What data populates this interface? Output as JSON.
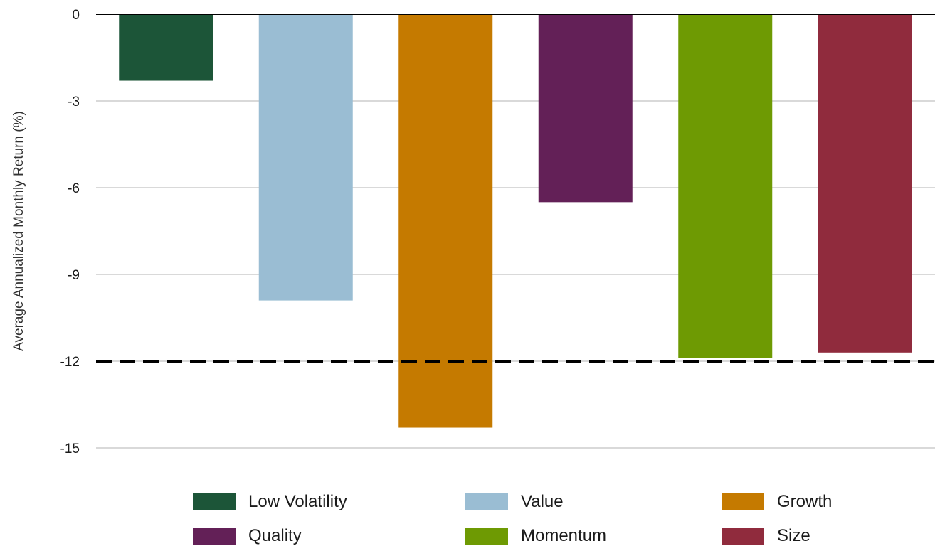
{
  "chart_data": {
    "type": "bar",
    "title": "",
    "xlabel": "",
    "ylabel": "Average Annualized Monthly Return (%)",
    "ylim": [
      -15,
      0
    ],
    "yticks": [
      0,
      -3,
      -6,
      -9,
      -12,
      -15
    ],
    "ytick_labels": [
      "0",
      "-3",
      "-6",
      "-9",
      "-12",
      "-15"
    ],
    "grid": true,
    "legend_position": "bottom",
    "reference_line": {
      "value": -12,
      "style": "dashed",
      "color": "#000000"
    },
    "categories": [
      "Low Volatility",
      "Value",
      "Growth",
      "Quality",
      "Momentum",
      "Size"
    ],
    "values": [
      -2.3,
      -9.9,
      -14.3,
      -6.5,
      -11.9,
      -11.7
    ],
    "colors": [
      "#1c5538",
      "#9abdd3",
      "#c57a00",
      "#632057",
      "#6e9a03",
      "#902b3d"
    ]
  }
}
